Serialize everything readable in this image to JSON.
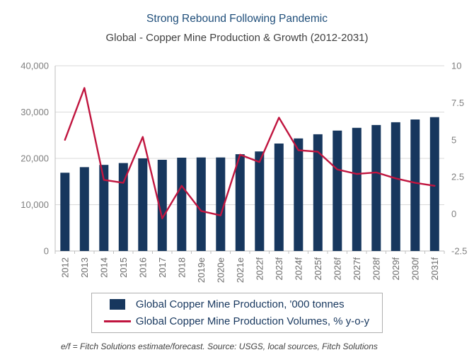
{
  "chart_data": {
    "type": "combo",
    "title": "Strong Rebound Following Pandemic",
    "subtitle": "Global - Copper Mine Production & Growth (2012-2031)",
    "categories": [
      "2012",
      "2013",
      "2014",
      "2015",
      "2016",
      "2017",
      "2018",
      "2019e",
      "2020e",
      "2021e",
      "2022f",
      "2023f",
      "2024f",
      "2025f",
      "2026f",
      "2027f",
      "2028f",
      "2029f",
      "2030f",
      "2031f"
    ],
    "series": [
      {
        "name": "Global Copper Mine Production, '000 tonnes",
        "type": "bar",
        "axis": "left",
        "color": "#17375E",
        "values": [
          16900,
          18100,
          18600,
          19000,
          20000,
          19700,
          20150,
          20200,
          20200,
          20900,
          21500,
          23200,
          24300,
          25200,
          26000,
          26600,
          27200,
          27800,
          28400,
          28900
        ]
      },
      {
        "name": "Global Copper Mine Production Volumes, % y-o-y",
        "type": "line",
        "axis": "right",
        "color": "#C0153F",
        "values": [
          5.0,
          8.5,
          2.3,
          2.1,
          5.2,
          -0.3,
          1.9,
          0.2,
          -0.1,
          4.0,
          3.5,
          6.5,
          4.3,
          4.2,
          3.0,
          2.7,
          2.8,
          2.4,
          2.1,
          1.9
        ]
      }
    ],
    "left_axis": {
      "min": 0,
      "max": 40000,
      "ticks": [
        "40,000",
        "30,000",
        "20,000",
        "10,000",
        "0"
      ],
      "tick_values": [
        40000,
        30000,
        20000,
        10000,
        0
      ]
    },
    "right_axis": {
      "min": -2.5,
      "max": 10,
      "ticks": [
        "10",
        "7.5",
        "5",
        "2.5",
        "0",
        "-2.5"
      ],
      "tick_values": [
        10,
        7.5,
        5,
        2.5,
        0,
        -2.5
      ]
    },
    "grid": true,
    "legend_position": "bottom"
  },
  "footer": {
    "note": "e/f = Fitch Solutions estimate/forecast. Source: USGS, local sources, Fitch Solutions"
  }
}
